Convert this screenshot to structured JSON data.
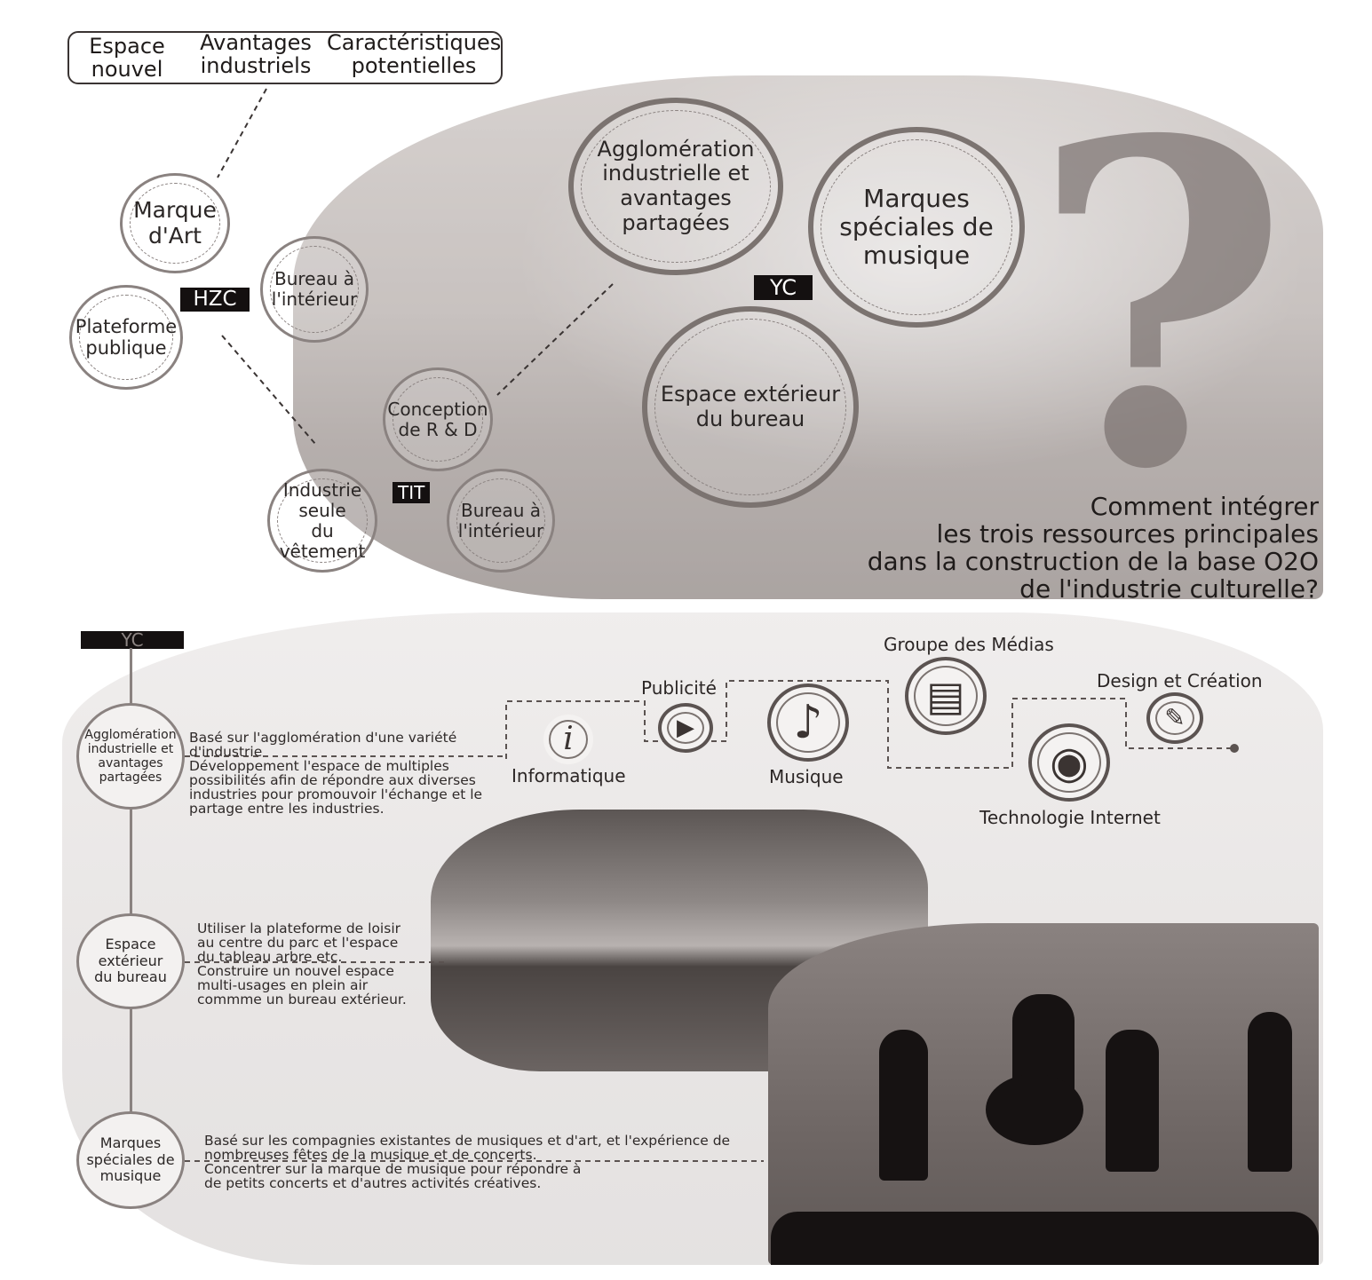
{
  "top_box": {
    "col1": "Espace\nnouvel",
    "col2": "Avantages\nindustriels",
    "col3": "Caractéristiques\npotentielles"
  },
  "tags": {
    "hzc": "HZC",
    "yc": "YC",
    "tit": "TIT"
  },
  "small_circles": {
    "marque_art": "Marque\nd'Art",
    "plateforme": "Plateforme\npublique",
    "bureau1": "Bureau à\nl'intérieur",
    "conception": "Conception\nde R & D",
    "industrie": "Industrie seule\ndu vêtement",
    "bureau2": "Bureau à\nl'intérieur"
  },
  "big_circles": {
    "agglomeration": "Agglomération\nindustrielle et\navantages\npartagées",
    "marques": "Marques\nspéciales de\nmusique",
    "espace_ext": "Espace extérieur\ndu bureau"
  },
  "question": "Comment intégrer\nles trois ressources principales\ndans la construction de la base O2O\nde l'industrie culturelle?",
  "timeline": {
    "yc": "YC",
    "items": [
      {
        "label": "Agglomération\nindustrielle et\navantages\npartagées",
        "desc": "Basé sur l'agglomération d'une variété\nd'industrie\nDéveloppement l'espace de multiples\npossibilités afin de répondre aux diverses\nindustries pour promouvoir l'échange et le\npartage entre les industries."
      },
      {
        "label": "Espace\nextérieur\ndu bureau",
        "desc": "Utiliser la plateforme de loisir\nau centre du parc et l'espace\ndu tableau arbre etc.\nConstruire un nouvel espace\nmulti-usages en plein air\ncommme un bureau extérieur."
      },
      {
        "label": "Marques\nspéciales de\nmusique",
        "desc": "Basé sur les compagnies existantes de musiques et d'art, et l'expérience de\nnombreuses fêtes de la musique et de concerts.\nConcentrer sur la marque de musique pour répondre à\nde petits concerts et d'autres activités créatives."
      }
    ]
  },
  "media": {
    "informatique": {
      "label": "Informatique",
      "icon": "info-icon",
      "glyph": "i"
    },
    "publicite": {
      "label": "Publicité",
      "icon": "play-icon",
      "glyph": "▶"
    },
    "musique": {
      "label": "Musique",
      "icon": "music-note-icon",
      "glyph": "♪"
    },
    "groupe": {
      "label": "Groupe des Médias",
      "icon": "newspaper-icon",
      "glyph": "▤"
    },
    "technologie": {
      "label": "Technologie Internet",
      "icon": "globe-icon",
      "glyph": "◉"
    },
    "design": {
      "label": "Design et Création",
      "icon": "design-icon",
      "glyph": "✎"
    }
  },
  "colors": {
    "ring": "#8a8280",
    "tag_bg": "#141010",
    "text": "#2b2726"
  }
}
